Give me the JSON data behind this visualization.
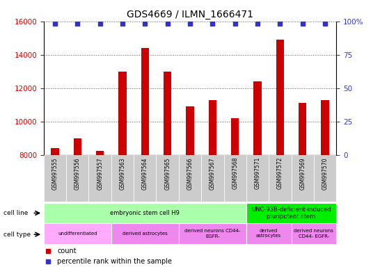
{
  "title": "GDS4669 / ILMN_1666471",
  "samples": [
    "GSM997555",
    "GSM997556",
    "GSM997557",
    "GSM997563",
    "GSM997564",
    "GSM997565",
    "GSM997566",
    "GSM997567",
    "GSM997568",
    "GSM997571",
    "GSM997572",
    "GSM997569",
    "GSM997570"
  ],
  "counts": [
    8400,
    9000,
    8250,
    13000,
    14400,
    13000,
    10900,
    11300,
    10200,
    12400,
    14900,
    11100,
    11300
  ],
  "percentiles": [
    100,
    100,
    100,
    100,
    100,
    100,
    100,
    100,
    100,
    100,
    100,
    100,
    100
  ],
  "ylim_left": [
    8000,
    16000
  ],
  "ylim_right": [
    0,
    100
  ],
  "yticks_left": [
    8000,
    10000,
    12000,
    14000,
    16000
  ],
  "yticks_right": [
    0,
    25,
    50,
    75,
    100
  ],
  "bar_color": "#cc0000",
  "dot_color": "#3333cc",
  "bar_width": 0.35,
  "cell_line_spans": [
    {
      "label": "embryonic stem cell H9",
      "start": 0,
      "end": 9,
      "color": "#aaffaa"
    },
    {
      "label": "UNC-93B-deficient-induced\npluripotent stem",
      "start": 9,
      "end": 13,
      "color": "#00ee00"
    }
  ],
  "cell_type_spans": [
    {
      "label": "undifferentiated",
      "start": 0,
      "end": 3,
      "color": "#ffaaff"
    },
    {
      "label": "derived astrocytes",
      "start": 3,
      "end": 6,
      "color": "#ee88ee"
    },
    {
      "label": "derived neurons CD44-\nEGFR-",
      "start": 6,
      "end": 9,
      "color": "#ee88ee"
    },
    {
      "label": "derived\nastrocytes",
      "start": 9,
      "end": 11,
      "color": "#ee88ee"
    },
    {
      "label": "derived neurons\nCD44- EGFR-",
      "start": 11,
      "end": 13,
      "color": "#ee88ee"
    }
  ],
  "grid_color": "#555555",
  "tick_color_left": "#cc0000",
  "tick_color_right": "#3333cc",
  "xtick_bg": "#cccccc",
  "legend_count_color": "#cc0000",
  "legend_pct_color": "#3333cc"
}
